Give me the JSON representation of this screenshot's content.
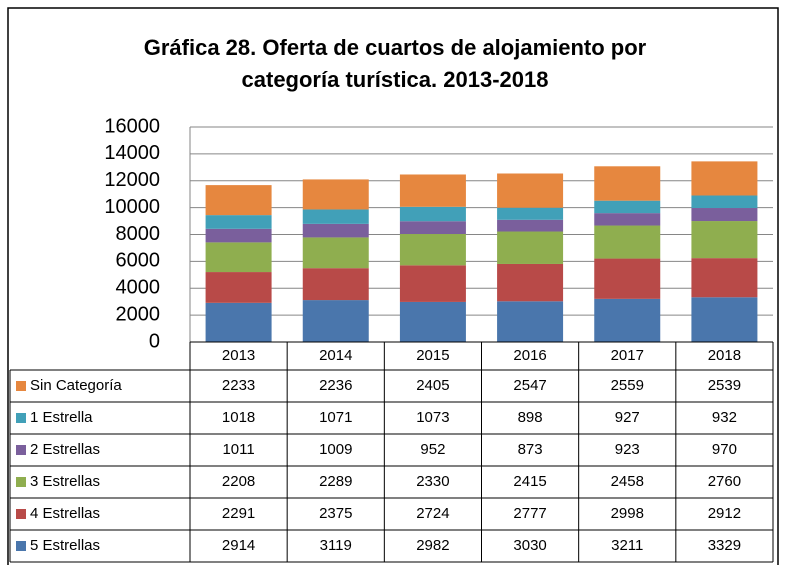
{
  "chart_data": {
    "type": "stacked_bar",
    "title": [
      "Gráfica 28. Oferta de cuartos de alojamiento por",
      "categoría turística. 2013-2018"
    ],
    "categories": [
      "2013",
      "2014",
      "2015",
      "2016",
      "2017",
      "2018"
    ],
    "series": [
      {
        "name": "5 Estrellas",
        "color": "#4a76ac",
        "values": [
          2914,
          3119,
          2982,
          3030,
          3211,
          3329
        ]
      },
      {
        "name": "4 Estrellas",
        "color": "#b84a48",
        "values": [
          2291,
          2375,
          2724,
          2777,
          2998,
          2912
        ]
      },
      {
        "name": "3 Estrellas",
        "color": "#8fae4f",
        "values": [
          2208,
          2289,
          2330,
          2415,
          2458,
          2760
        ]
      },
      {
        "name": "2 Estrellas",
        "color": "#7a5f9c",
        "values": [
          1011,
          1009,
          952,
          873,
          923,
          970
        ]
      },
      {
        "name": "1 Estrella",
        "color": "#41a0b8",
        "values": [
          1018,
          1071,
          1073,
          898,
          927,
          932
        ]
      },
      {
        "name": "Sin Categoría",
        "color": "#e6873f",
        "values": [
          2233,
          2236,
          2405,
          2547,
          2559,
          2539
        ]
      }
    ],
    "ylim": [
      0,
      16000
    ],
    "yticks": [
      0,
      2000,
      4000,
      6000,
      8000,
      10000,
      12000,
      14000,
      16000
    ],
    "grid": true
  }
}
